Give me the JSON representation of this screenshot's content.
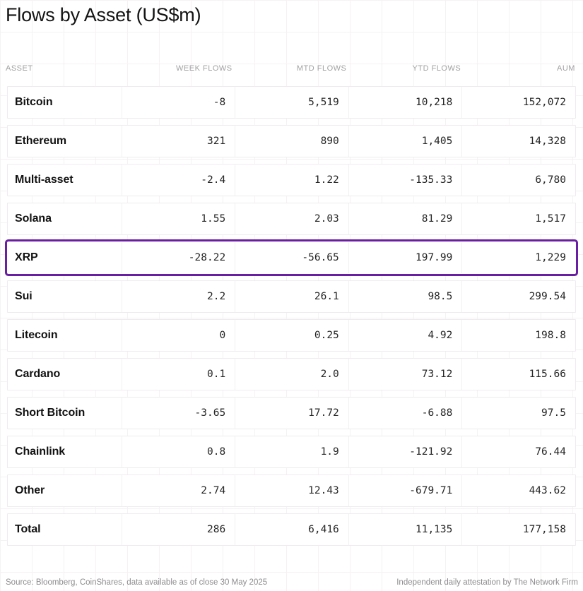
{
  "chart_data": {
    "type": "table",
    "title": "Flows by Asset (US$m)",
    "columns": [
      "ASSET",
      "WEEK FLOWS",
      "MTD FLOWS",
      "YTD FLOWS",
      "AUM"
    ],
    "rows": [
      {
        "asset": "Bitcoin",
        "week_flows": "-8",
        "mtd_flows": "5,519",
        "ytd_flows": "10,218",
        "aum": "152,072"
      },
      {
        "asset": "Ethereum",
        "week_flows": "321",
        "mtd_flows": "890",
        "ytd_flows": "1,405",
        "aum": "14,328"
      },
      {
        "asset": "Multi-asset",
        "week_flows": "-2.4",
        "mtd_flows": "1.22",
        "ytd_flows": "-135.33",
        "aum": "6,780"
      },
      {
        "asset": "Solana",
        "week_flows": "1.55",
        "mtd_flows": "2.03",
        "ytd_flows": "81.29",
        "aum": "1,517"
      },
      {
        "asset": "XRP",
        "week_flows": "-28.22",
        "mtd_flows": "-56.65",
        "ytd_flows": "197.99",
        "aum": "1,229"
      },
      {
        "asset": "Sui",
        "week_flows": "2.2",
        "mtd_flows": "26.1",
        "ytd_flows": "98.5",
        "aum": "299.54"
      },
      {
        "asset": "Litecoin",
        "week_flows": "0",
        "mtd_flows": "0.25",
        "ytd_flows": "4.92",
        "aum": "198.8"
      },
      {
        "asset": "Cardano",
        "week_flows": "0.1",
        "mtd_flows": "2.0",
        "ytd_flows": "73.12",
        "aum": "115.66"
      },
      {
        "asset": "Short Bitcoin",
        "week_flows": "-3.65",
        "mtd_flows": "17.72",
        "ytd_flows": "-6.88",
        "aum": "97.5"
      },
      {
        "asset": "Chainlink",
        "week_flows": "0.8",
        "mtd_flows": "1.9",
        "ytd_flows": "-121.92",
        "aum": "76.44"
      },
      {
        "asset": "Other",
        "week_flows": "2.74",
        "mtd_flows": "12.43",
        "ytd_flows": "-679.71",
        "aum": "443.62"
      },
      {
        "asset": "Total",
        "week_flows": "286",
        "mtd_flows": "6,416",
        "ytd_flows": "11,135",
        "aum": "177,158"
      }
    ],
    "highlighted_row": "XRP",
    "layout": {
      "grid": "on",
      "number_align": "right"
    }
  },
  "colors": {
    "highlight_border": "#6a1fa2",
    "header_text": "#a3a0a3",
    "grid_line": "#f5f2f4"
  },
  "footer": {
    "source": "Source: Bloomberg, CoinShares, data available as of close 30 May 2025",
    "attestation": "Independent daily attestation by The Network Firm"
  }
}
